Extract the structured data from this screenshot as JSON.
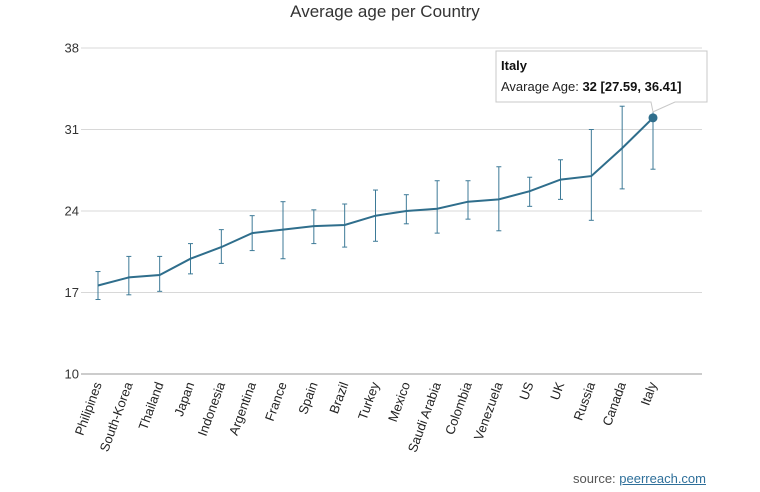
{
  "chart_data": {
    "type": "line",
    "title": "Average age per Country",
    "categories": [
      "Philipines",
      "South-Korea",
      "Thailand",
      "Japan",
      "Indonesia",
      "Argentina",
      "France",
      "Spain",
      "Brazil",
      "Turkey",
      "Mexico",
      "Saudi Arabia",
      "Colombia",
      "Venezuela",
      "US",
      "UK",
      "Russia",
      "Canada",
      "Italy"
    ],
    "series": [
      {
        "name": "Average Age",
        "color": "#2f6e8c",
        "values": [
          17.6,
          18.3,
          18.5,
          19.9,
          20.9,
          22.1,
          22.4,
          22.7,
          22.8,
          23.6,
          24.0,
          24.2,
          24.8,
          25.0,
          25.7,
          26.7,
          27.0,
          29.4,
          32.0
        ],
        "low": [
          16.4,
          16.8,
          17.1,
          18.6,
          19.5,
          20.6,
          19.9,
          21.2,
          20.9,
          21.4,
          22.9,
          22.1,
          23.3,
          22.3,
          24.4,
          25.0,
          23.2,
          25.9,
          27.59
        ],
        "high": [
          18.8,
          20.1,
          20.1,
          21.2,
          22.4,
          23.6,
          24.8,
          24.1,
          24.6,
          25.8,
          25.4,
          26.6,
          26.6,
          27.8,
          26.9,
          28.4,
          31.0,
          33.0,
          36.41
        ]
      }
    ],
    "yticks": [
      10,
      17,
      24,
      31,
      38
    ],
    "ylim": [
      10,
      38
    ],
    "xlabel": "",
    "ylabel": "",
    "grid": true,
    "tooltip": {
      "title": "Italy",
      "label": "Avarage Age: ",
      "value": "32 [27.59, 36.41]",
      "category_index": 18
    }
  },
  "source": {
    "prefix": "source: ",
    "link_text": "peerreach.com"
  }
}
